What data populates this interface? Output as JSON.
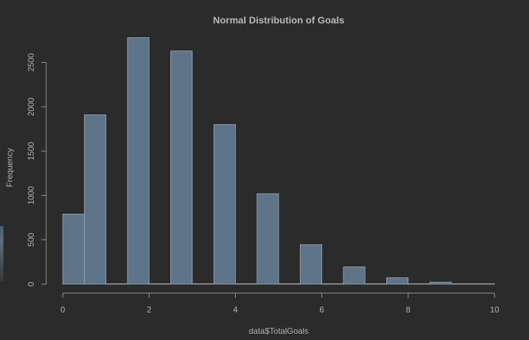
{
  "chart_data": {
    "type": "bar",
    "title": "Normal Distribution of Goals",
    "xlabel": "data$TotalGoals",
    "ylabel": "Frequency",
    "xlim": [
      0,
      10
    ],
    "ylim": [
      0,
      2800
    ],
    "xticks": [
      0,
      2,
      4,
      6,
      8,
      10
    ],
    "yticks": [
      0,
      500,
      1000,
      1500,
      2000,
      2500
    ],
    "bins": [
      {
        "from": 0.0,
        "to": 0.5,
        "value": 790
      },
      {
        "from": 0.5,
        "to": 1.0,
        "value": 1910
      },
      {
        "from": 1.0,
        "to": 1.5,
        "value": 0
      },
      {
        "from": 1.5,
        "to": 2.0,
        "value": 2780
      },
      {
        "from": 2.0,
        "to": 2.5,
        "value": 0
      },
      {
        "from": 2.5,
        "to": 3.0,
        "value": 2630
      },
      {
        "from": 3.0,
        "to": 3.5,
        "value": 0
      },
      {
        "from": 3.5,
        "to": 4.0,
        "value": 1800
      },
      {
        "from": 4.0,
        "to": 4.5,
        "value": 0
      },
      {
        "from": 4.5,
        "to": 5.0,
        "value": 1020
      },
      {
        "from": 5.0,
        "to": 5.5,
        "value": 0
      },
      {
        "from": 5.5,
        "to": 6.0,
        "value": 445
      },
      {
        "from": 6.0,
        "to": 6.5,
        "value": 0
      },
      {
        "from": 6.5,
        "to": 7.0,
        "value": 195
      },
      {
        "from": 7.0,
        "to": 7.5,
        "value": 0
      },
      {
        "from": 7.5,
        "to": 8.0,
        "value": 72
      },
      {
        "from": 8.0,
        "to": 8.5,
        "value": 0
      },
      {
        "from": 8.5,
        "to": 9.0,
        "value": 22
      },
      {
        "from": 9.0,
        "to": 9.5,
        "value": 4
      },
      {
        "from": 9.5,
        "to": 10.0,
        "value": 3
      }
    ],
    "bar_fill": "#5d7489",
    "bar_border": "#9fb0bd",
    "background": "#2b2b2b",
    "grid": false,
    "legend": false
  }
}
